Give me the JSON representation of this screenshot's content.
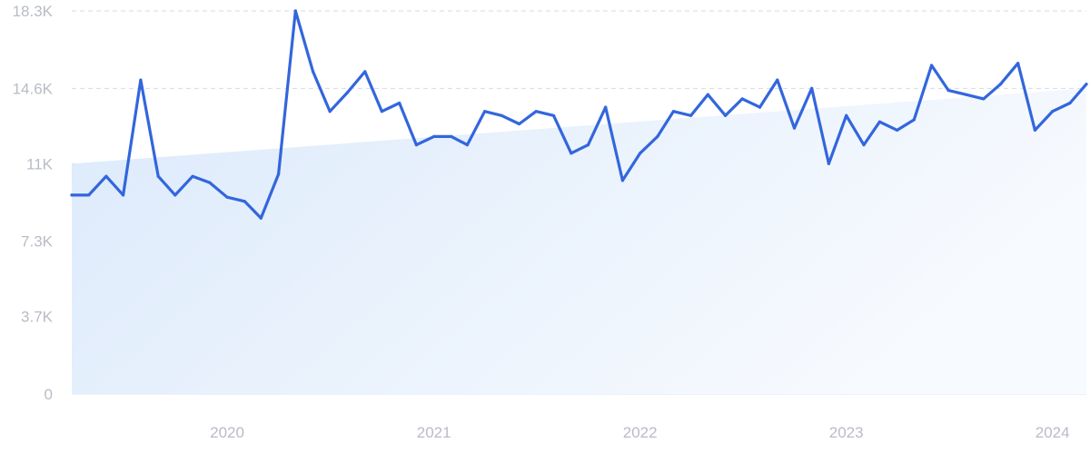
{
  "chart_data": {
    "type": "line",
    "title": "",
    "xlabel": "",
    "ylabel": "",
    "ylim": [
      0,
      18300
    ],
    "xlim": [
      "2019-04-01",
      "2024-03-01"
    ],
    "grid": true,
    "y_ticks": [
      {
        "value": 0,
        "label": "0"
      },
      {
        "value": 3700,
        "label": "3.7K"
      },
      {
        "value": 7300,
        "label": "7.3K"
      },
      {
        "value": 11000,
        "label": "11K"
      },
      {
        "value": 14600,
        "label": "14.6K"
      },
      {
        "value": 18300,
        "label": "18.3K"
      }
    ],
    "x_ticks": [
      {
        "value": "2020-01-01",
        "label": "2020"
      },
      {
        "value": "2021-01-01",
        "label": "2021"
      },
      {
        "value": "2022-01-01",
        "label": "2022"
      },
      {
        "value": "2023-01-01",
        "label": "2023"
      },
      {
        "value": "2024-01-01",
        "label": "2024"
      }
    ],
    "trend": {
      "start": [
        "2019-04-01",
        11000
      ],
      "end": [
        "2024-03-01",
        14600
      ]
    },
    "series": [
      {
        "color": "#3366dd",
        "area_color": "#dceafb",
        "points": [
          [
            "2019-04-01",
            9500
          ],
          [
            "2019-05-01",
            9500
          ],
          [
            "2019-06-01",
            10400
          ],
          [
            "2019-07-01",
            9500
          ],
          [
            "2019-08-01",
            15000
          ],
          [
            "2019-09-01",
            10400
          ],
          [
            "2019-10-01",
            9500
          ],
          [
            "2019-11-01",
            10400
          ],
          [
            "2019-12-01",
            10100
          ],
          [
            "2020-01-01",
            9400
          ],
          [
            "2020-02-01",
            9200
          ],
          [
            "2020-03-01",
            8400
          ],
          [
            "2020-04-01",
            10500
          ],
          [
            "2020-05-01",
            18300
          ],
          [
            "2020-06-01",
            15400
          ],
          [
            "2020-07-01",
            13500
          ],
          [
            "2020-08-01",
            14400
          ],
          [
            "2020-09-01",
            15400
          ],
          [
            "2020-10-01",
            13500
          ],
          [
            "2020-11-01",
            13900
          ],
          [
            "2020-12-01",
            11900
          ],
          [
            "2021-01-01",
            12300
          ],
          [
            "2021-02-01",
            12300
          ],
          [
            "2021-03-01",
            11900
          ],
          [
            "2021-04-01",
            13500
          ],
          [
            "2021-05-01",
            13300
          ],
          [
            "2021-06-01",
            12900
          ],
          [
            "2021-07-01",
            13500
          ],
          [
            "2021-08-01",
            13300
          ],
          [
            "2021-09-01",
            11500
          ],
          [
            "2021-10-01",
            11900
          ],
          [
            "2021-11-01",
            13700
          ],
          [
            "2021-12-01",
            10200
          ],
          [
            "2022-01-01",
            11500
          ],
          [
            "2022-02-01",
            12300
          ],
          [
            "2022-03-01",
            13500
          ],
          [
            "2022-04-01",
            13300
          ],
          [
            "2022-05-01",
            14300
          ],
          [
            "2022-06-01",
            13300
          ],
          [
            "2022-07-01",
            14100
          ],
          [
            "2022-08-01",
            13700
          ],
          [
            "2022-09-01",
            15000
          ],
          [
            "2022-10-01",
            12700
          ],
          [
            "2022-11-01",
            14600
          ],
          [
            "2022-12-01",
            11000
          ],
          [
            "2023-01-01",
            13300
          ],
          [
            "2023-02-01",
            11900
          ],
          [
            "2023-03-01",
            13000
          ],
          [
            "2023-04-01",
            12600
          ],
          [
            "2023-05-01",
            13100
          ],
          [
            "2023-06-01",
            15700
          ],
          [
            "2023-07-01",
            14500
          ],
          [
            "2023-08-01",
            14300
          ],
          [
            "2023-09-01",
            14100
          ],
          [
            "2023-10-01",
            14800
          ],
          [
            "2023-11-01",
            15800
          ],
          [
            "2023-12-01",
            12600
          ],
          [
            "2024-01-01",
            13500
          ],
          [
            "2024-02-01",
            13900
          ],
          [
            "2024-03-01",
            14800
          ]
        ]
      }
    ]
  }
}
